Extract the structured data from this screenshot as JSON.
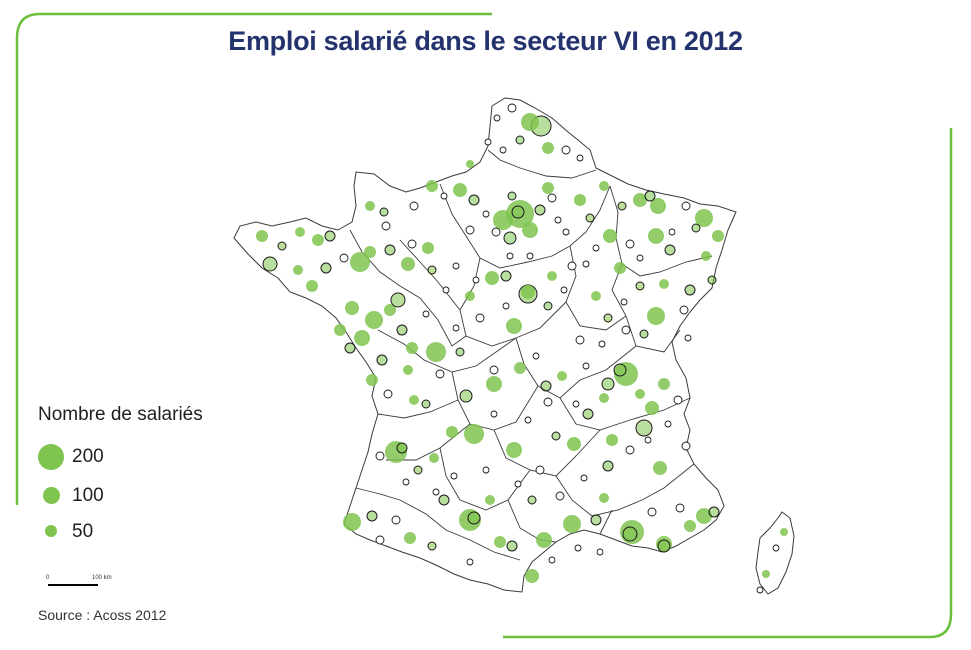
{
  "title": "Emploi salarié dans le secteur VI en 2012",
  "legend": {
    "title": "Nombre de salariés",
    "items": [
      {
        "value": 200,
        "label": "200"
      },
      {
        "value": 100,
        "label": "100"
      },
      {
        "value": 50,
        "label": "50"
      }
    ]
  },
  "scale_bar": {
    "start_label": "0",
    "end_label": "100 km"
  },
  "source": "Source : Acoss 2012",
  "colors": {
    "title": "#24336e",
    "frame": "#6cbf3c",
    "bubble": "#7fc44f",
    "bubble_dark": "#5aa332",
    "outline": "#1a1a1a",
    "borders": "#3a3a3a"
  },
  "map_subject": "France departments with employee bubbles"
}
